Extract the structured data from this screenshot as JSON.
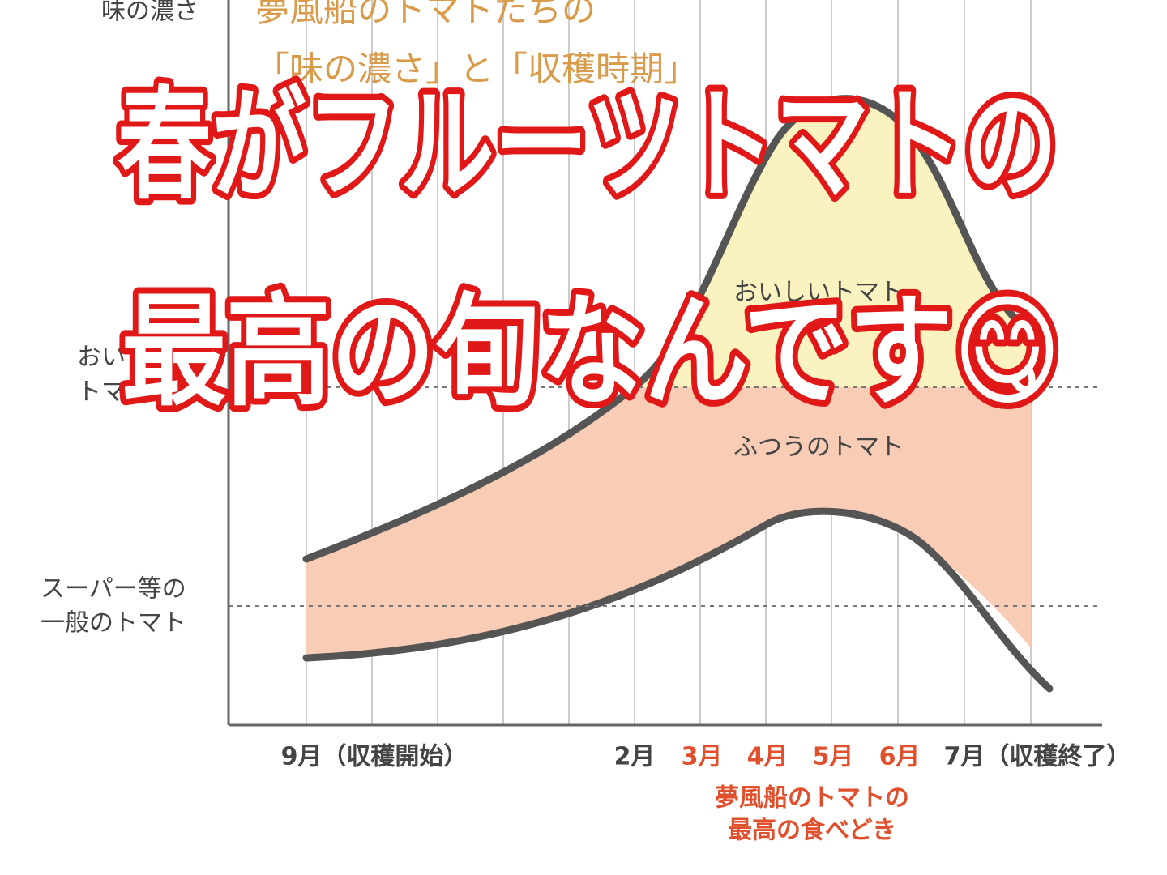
{
  "header": {
    "corner_label": "味の濃さ",
    "title_lines": [
      "夢風船のトマトたちの",
      "「味の濃さ」と「収穫時期」"
    ]
  },
  "y_labels": {
    "tasty": [
      "おいしい",
      "トマト"
    ],
    "ordinary": [
      "スーパー等の",
      "一般のトマト"
    ]
  },
  "regions": {
    "tasty": "おいしいトマト",
    "normal": "ふつうのトマト"
  },
  "x_labels": [
    "9月（収穫開始）",
    "2月",
    "3月",
    "4月",
    "5月",
    "6月",
    "7月（収穫終了）"
  ],
  "peak_note": [
    "夢風船のトマトの",
    "最高の食べどき"
  ],
  "overlay": [
    "春がフルーツトマトの",
    "最高の旬なんです😋"
  ]
}
